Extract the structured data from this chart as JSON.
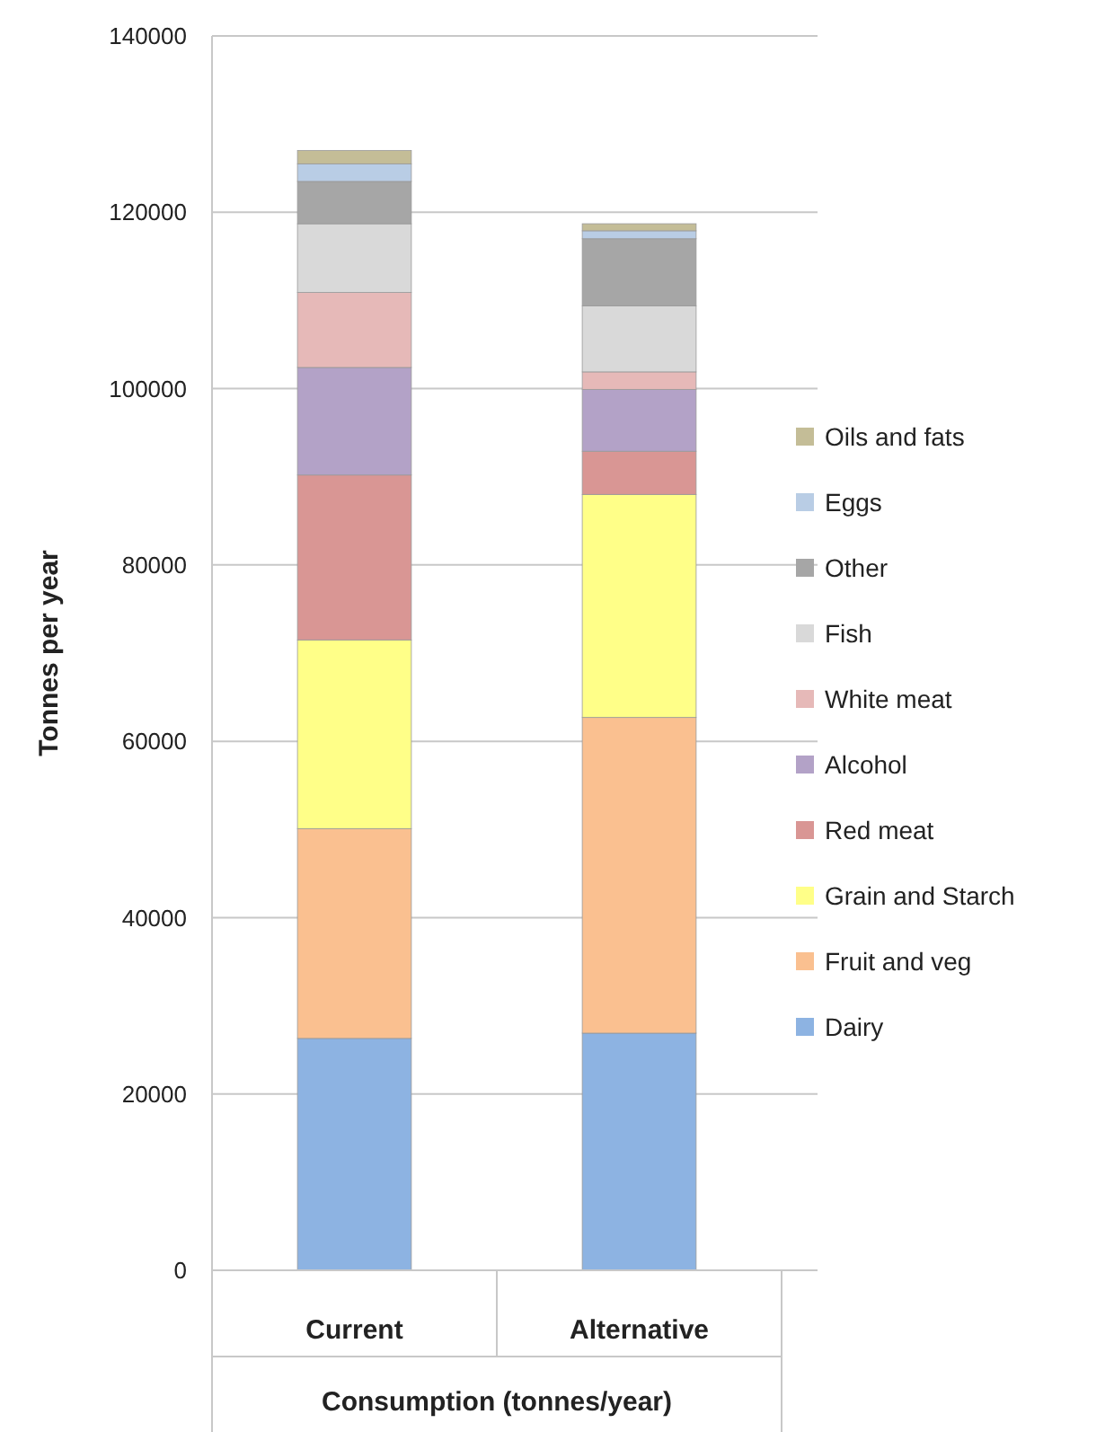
{
  "chart_data": {
    "type": "bar",
    "stacked": true,
    "xlabel": "Consumption (tonnes/year)",
    "ylabel": "Tonnes per year",
    "categories": [
      "Current",
      "Alternative"
    ],
    "series": [
      {
        "name": "Dairy",
        "color": "#8db3e2",
        "values": [
          26300,
          26900
        ]
      },
      {
        "name": "Fruit and veg",
        "color": "#fac090",
        "values": [
          23800,
          35800
        ]
      },
      {
        "name": "Grain and Starch",
        "color": "#ffff88",
        "values": [
          21400,
          25300
        ]
      },
      {
        "name": "Red meat",
        "color": "#d99694",
        "values": [
          18700,
          4900
        ]
      },
      {
        "name": "Alcohol",
        "color": "#b3a2c7",
        "values": [
          12200,
          7000
        ]
      },
      {
        "name": "White meat",
        "color": "#e6b9b8",
        "values": [
          8500,
          2000
        ]
      },
      {
        "name": "Fish",
        "color": "#d9d9d9",
        "values": [
          7800,
          7500
        ]
      },
      {
        "name": "Other",
        "color": "#a6a6a6",
        "values": [
          4800,
          7600
        ]
      },
      {
        "name": "Eggs",
        "color": "#b9cde5",
        "values": [
          2000,
          900
        ]
      },
      {
        "name": "Oils and fats",
        "color": "#c4bd97",
        "values": [
          1500,
          800
        ]
      }
    ],
    "ylim": [
      0,
      140000
    ],
    "yticks": [
      0,
      20000,
      40000,
      60000,
      80000,
      100000,
      120000,
      140000
    ],
    "grid": "y",
    "legend": "right"
  }
}
